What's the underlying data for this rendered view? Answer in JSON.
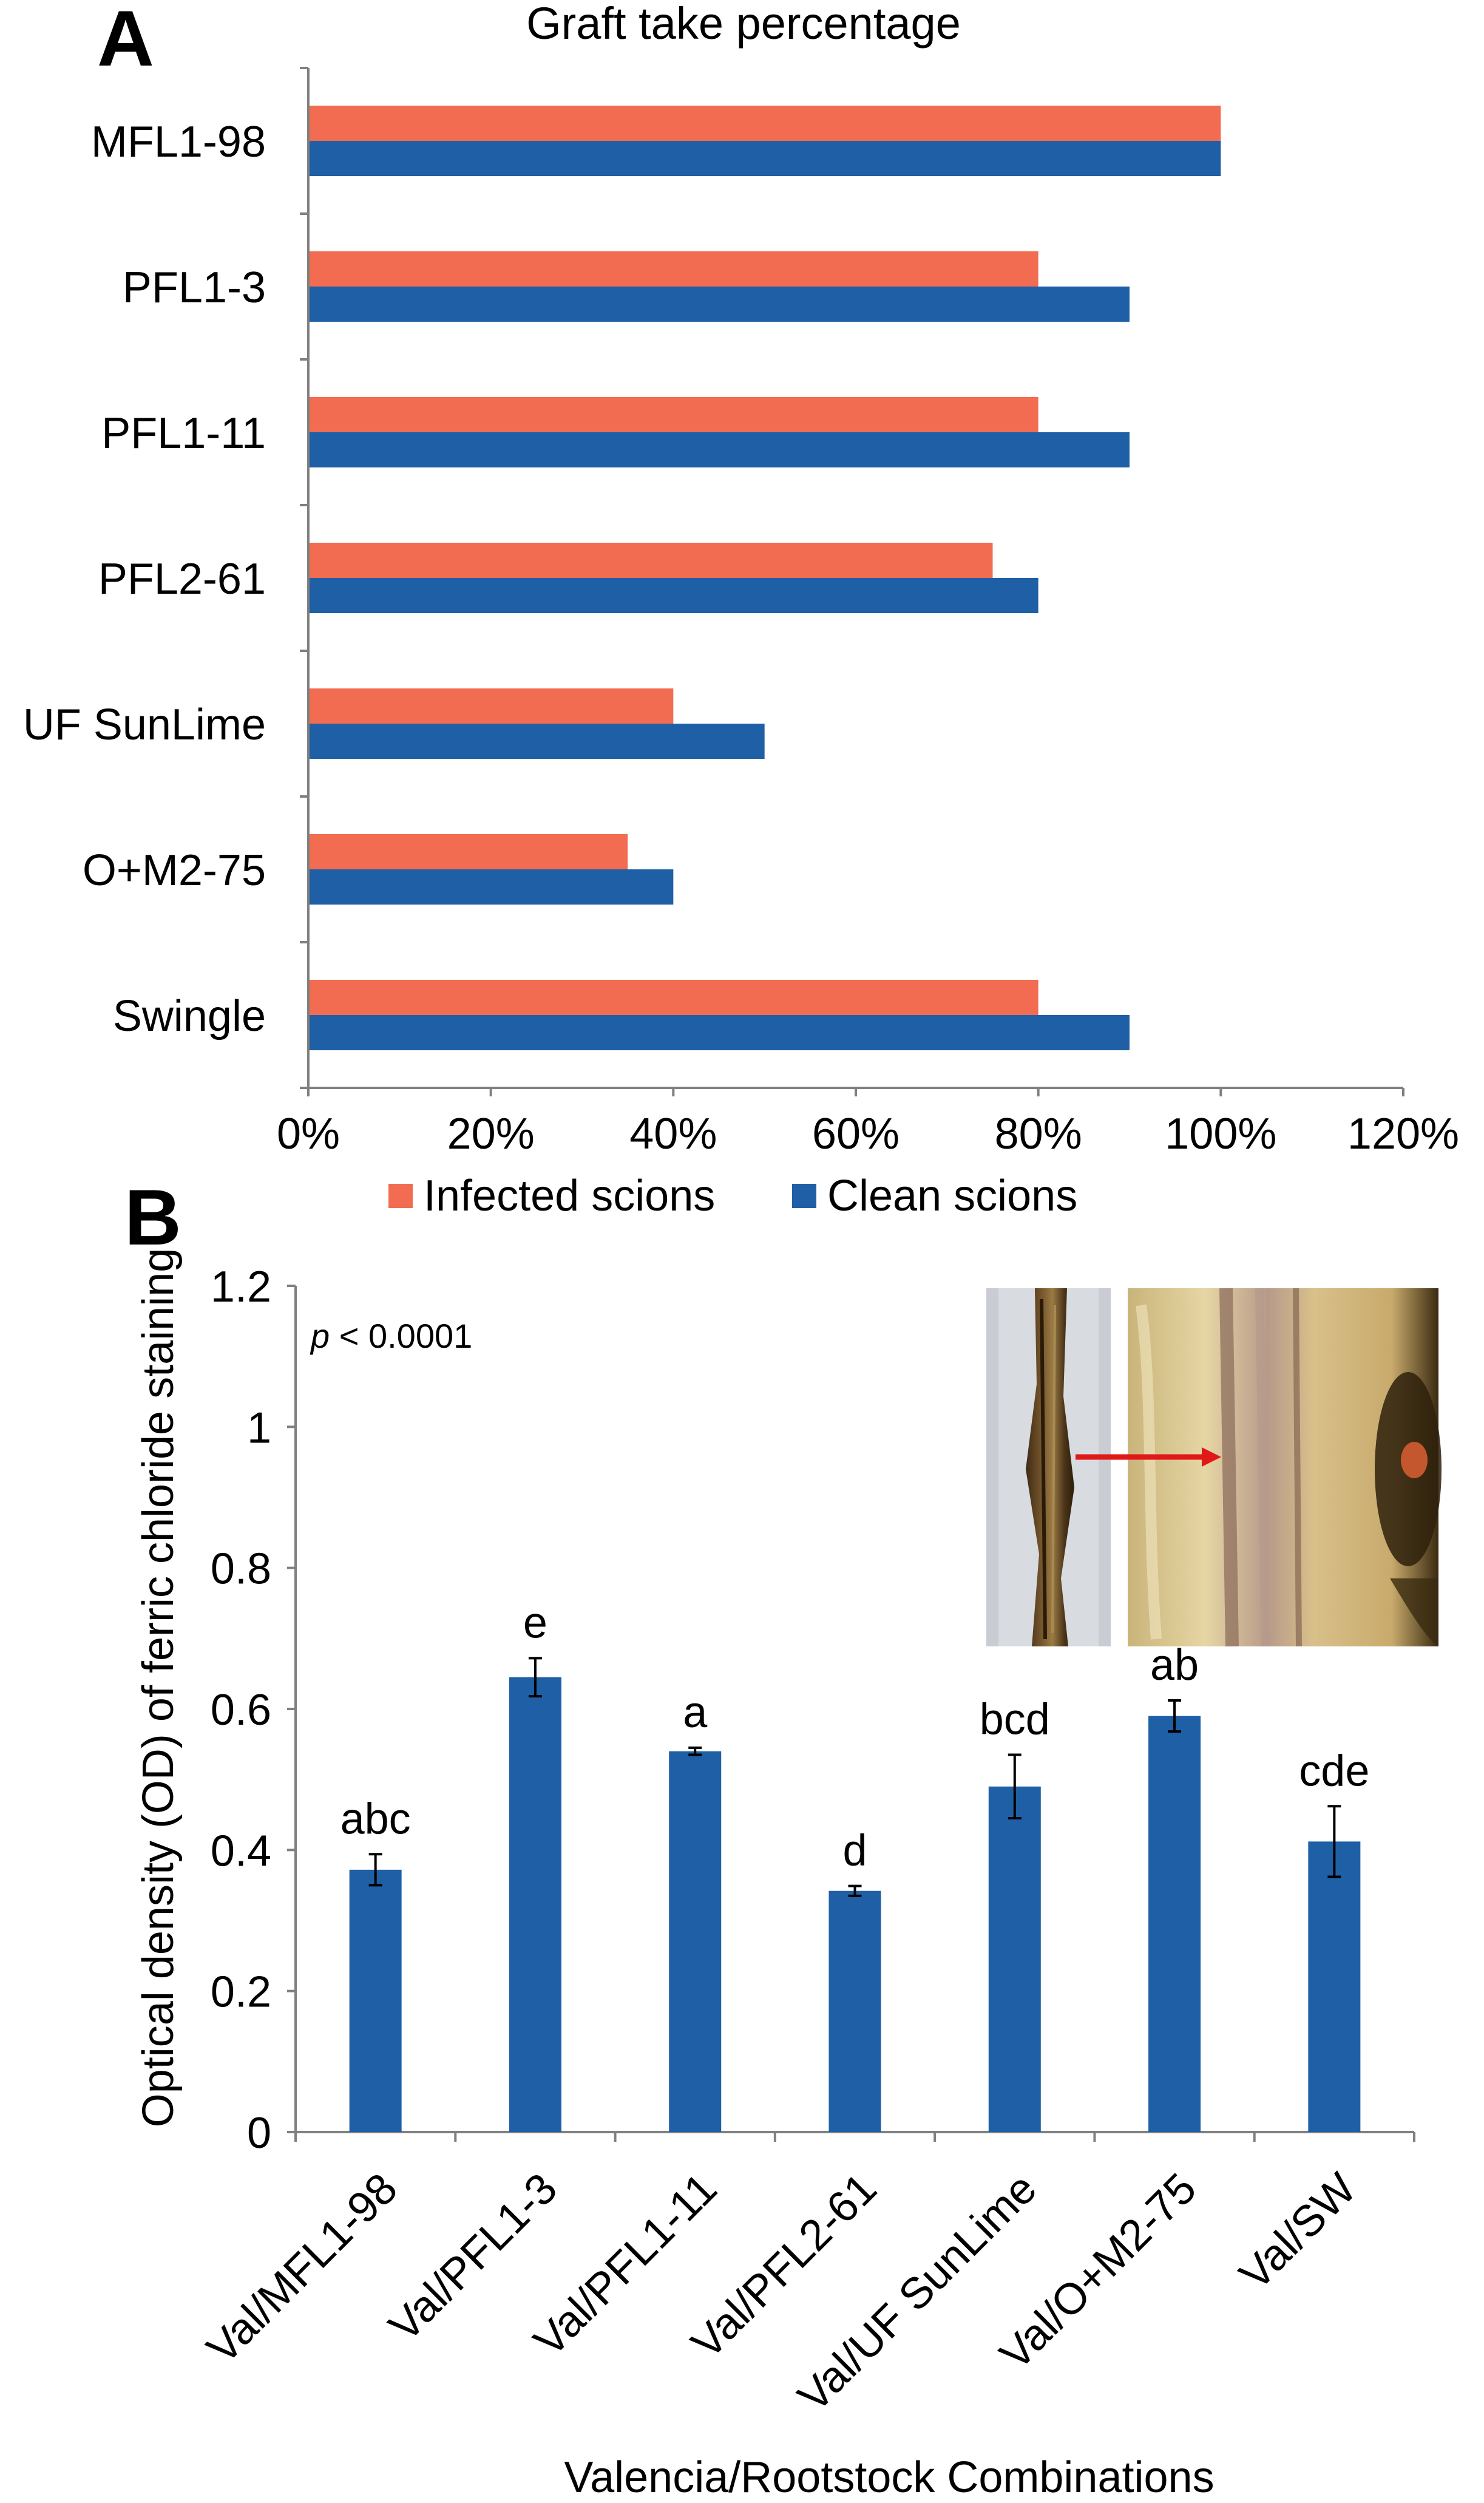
{
  "panels": {
    "a_label": "A",
    "b_label": "B"
  },
  "chart_data": [
    {
      "type": "bar",
      "orientation": "horizontal",
      "title": "Graft take percentage",
      "categories": [
        "MFL1-98",
        "PFL1-3",
        "PFL1-11",
        "PFL2-61",
        "UF SunLime",
        "O+M2-75",
        "Swingle"
      ],
      "series": [
        {
          "name": "Infected scions",
          "color": "#F26C52",
          "values": [
            100,
            80,
            80,
            75,
            40,
            35,
            80
          ]
        },
        {
          "name": "Clean scions",
          "color": "#1F5FA6",
          "values": [
            100,
            90,
            90,
            80,
            50,
            40,
            90
          ]
        }
      ],
      "xlim": [
        0,
        120
      ],
      "xticks": [
        "0%",
        "20%",
        "40%",
        "60%",
        "80%",
        "100%",
        "120%"
      ],
      "xlabel": "",
      "ylabel": "",
      "legend": [
        "Infected scions",
        "Clean scions"
      ],
      "legend_position": "bottom"
    },
    {
      "type": "bar",
      "title": "",
      "categories": [
        "Val/MFL1-98",
        "Val/PFL1-3",
        "Val/PFL1-11",
        "Val/PFL2-61",
        "Val/UF SunLime",
        "Val/O+M2-75",
        "Val/SW"
      ],
      "values": [
        0.372,
        0.645,
        0.54,
        0.342,
        0.49,
        0.59,
        0.412
      ],
      "errors": [
        0.022,
        0.027,
        0.005,
        0.007,
        0.045,
        0.022,
        0.05
      ],
      "letters": [
        "abc",
        "e",
        "a",
        "d",
        "bcd",
        "ab",
        "cde"
      ],
      "color": "#1F5FA6",
      "ylim": [
        0,
        1.2
      ],
      "yticks": [
        "0",
        "0.2",
        "0.4",
        "0.6",
        "0.8",
        "1",
        "1.2"
      ],
      "xlabel": "Valencia/Rootstock Combinations",
      "ylabel": "Optical density (OD) of ferric chloride staining",
      "annotation": "p < 0.0001",
      "annotation_p": "p",
      "annotation_rest": " < 0.0001"
    }
  ]
}
